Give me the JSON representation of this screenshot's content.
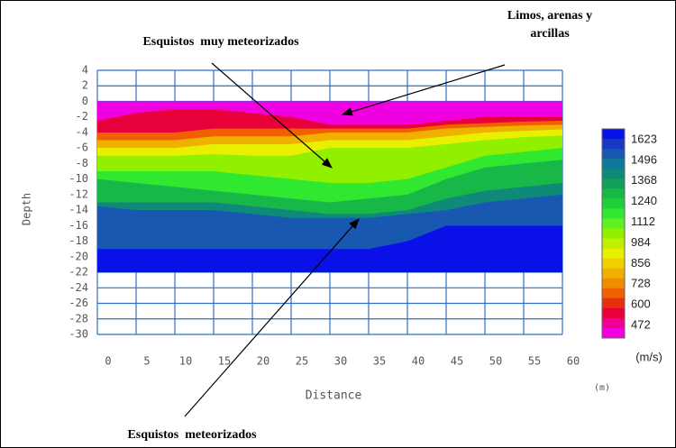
{
  "chart_data": {
    "type": "contour",
    "x_label": "Distance",
    "y_label": "Depth",
    "x_unit": "(m)",
    "xlim": [
      0,
      60
    ],
    "xticks": [
      0,
      5,
      10,
      15,
      20,
      25,
      30,
      35,
      40,
      45,
      50,
      55,
      60
    ],
    "ylim": [
      -30,
      4
    ],
    "yticks": [
      4,
      2,
      0,
      -2,
      -4,
      -6,
      -8,
      -10,
      -12,
      -14,
      -16,
      -18,
      -20,
      -22,
      -24,
      -26,
      -28,
      -30
    ],
    "grid": true,
    "grid_color": "#2f6fc4",
    "x": [
      0,
      5,
      10,
      15,
      20,
      25,
      30,
      35,
      40,
      45,
      50,
      55,
      60
    ],
    "field_bottom": -22,
    "layers": [
      {
        "color": "#f000e0",
        "top": [
          0,
          0,
          0,
          0,
          0,
          0,
          0,
          0,
          0,
          0,
          0,
          0,
          0
        ]
      },
      {
        "color": "#e8003a",
        "top": [
          -2.5,
          -1.5,
          -1,
          -1,
          -1.5,
          -2,
          -3,
          -3,
          -3,
          -2.5,
          -2,
          -2,
          -2
        ]
      },
      {
        "color": "#f06000",
        "top": [
          -4,
          -4,
          -4,
          -3.5,
          -3.5,
          -3.5,
          -3.5,
          -3.5,
          -3.5,
          -3,
          -2.8,
          -2.6,
          -2.5
        ]
      },
      {
        "color": "#f0b000",
        "top": [
          -5,
          -5,
          -5,
          -4.5,
          -4.5,
          -4.5,
          -4,
          -4,
          -4,
          -3.5,
          -3.3,
          -3.1,
          -3
        ]
      },
      {
        "color": "#e8f000",
        "top": [
          -6,
          -6,
          -6,
          -5.5,
          -5.5,
          -5.5,
          -5,
          -5,
          -5,
          -4.5,
          -4,
          -3.8,
          -3.6
        ]
      },
      {
        "color": "#90f000",
        "top": [
          -7,
          -7,
          -7,
          -6.8,
          -7,
          -7,
          -6,
          -6,
          -6,
          -5.5,
          -5,
          -4.6,
          -4.4
        ]
      },
      {
        "color": "#30e830",
        "top": [
          -9,
          -9,
          -9,
          -9,
          -9.5,
          -10,
          -10.5,
          -10.5,
          -10,
          -8.5,
          -7,
          -6.5,
          -6
        ]
      },
      {
        "color": "#18b848",
        "top": [
          -10,
          -10.5,
          -11,
          -11.5,
          -12,
          -12.5,
          -13,
          -12.5,
          -12,
          -10,
          -8.5,
          -8,
          -7.5
        ]
      },
      {
        "color": "#108a78",
        "top": [
          -13,
          -13,
          -13,
          -13,
          -13.5,
          -14,
          -14.5,
          -14.5,
          -14,
          -12.5,
          -11.5,
          -11,
          -10.5
        ]
      },
      {
        "color": "#1858b0",
        "top": [
          -13.5,
          -14,
          -14,
          -14,
          -14.5,
          -15,
          -15,
          -15,
          -14.5,
          -14,
          -13,
          -12.5,
          -12
        ]
      },
      {
        "color": "#0a10e8",
        "top": [
          -19,
          -19,
          -19,
          -19,
          -19,
          -19,
          -19,
          -19,
          -18,
          -16,
          -16,
          -16,
          -16
        ]
      }
    ],
    "colorbar_labels": [
      1623,
      1496,
      1368,
      1240,
      1112,
      984,
      856,
      728,
      600,
      472
    ],
    "colorbar_unit": "(m/s)",
    "colorbar_colors": [
      "#0a10e8",
      "#1838c8",
      "#1858b0",
      "#10789a",
      "#108a78",
      "#10a058",
      "#18b848",
      "#20d038",
      "#30e830",
      "#60f020",
      "#90f000",
      "#c0f000",
      "#e8f000",
      "#f0d000",
      "#f0b000",
      "#f08c00",
      "#f06000",
      "#e83010",
      "#e8003a",
      "#f00090",
      "#f000e0"
    ],
    "annotations": [
      {
        "text": [
          "Limos, arenas y",
          "arcillas"
        ]
      },
      {
        "text": [
          "Esquistos  muy meteorizados"
        ]
      },
      {
        "text": [
          "Esquistos  meteorizados"
        ]
      }
    ]
  }
}
